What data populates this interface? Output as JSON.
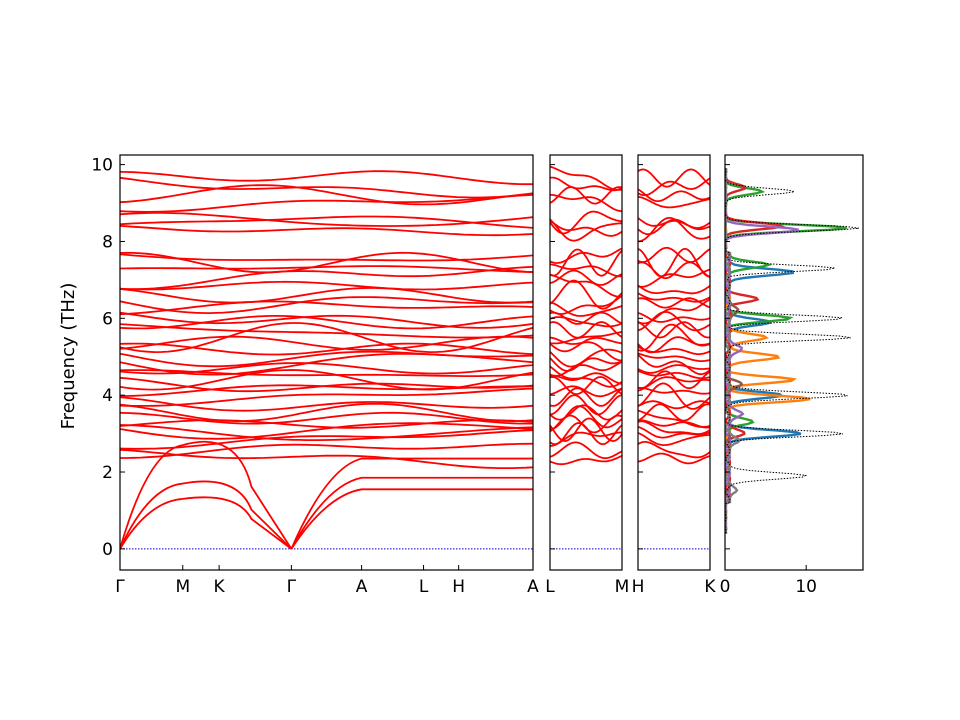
{
  "chart_data": [
    {
      "type": "line",
      "title": "",
      "ylabel": "Frequency (THz)",
      "ylim": [
        -0.55,
        10.25
      ],
      "yticks": [
        0,
        2,
        4,
        6,
        8,
        10
      ],
      "grid": false,
      "band_color": "#ff0000",
      "zero_line_color": "#0000cc",
      "segments": [
        {
          "name": "Γ-M-K-Γ-A-L-H-A",
          "xlim": [
            0,
            1
          ],
          "ticks": [
            {
              "label": "Γ",
              "pos": 0.0
            },
            {
              "label": "M",
              "pos": 0.152
            },
            {
              "label": "K",
              "pos": 0.24
            },
            {
              "label": "Γ",
              "pos": 0.415
            },
            {
              "label": "A",
              "pos": 0.585
            },
            {
              "label": "L",
              "pos": 0.735
            },
            {
              "label": "H",
              "pos": 0.82
            },
            {
              "label": "A",
              "pos": 1.0
            }
          ]
        },
        {
          "name": "L-M",
          "xlim": [
            0,
            1
          ],
          "ticks": [
            {
              "label": "L",
              "pos": 0.0
            },
            {
              "label": "M",
              "pos": 1.0
            }
          ]
        },
        {
          "name": "H-K",
          "xlim": [
            0,
            1
          ],
          "ticks": [
            {
              "label": "H",
              "pos": 0.0
            },
            {
              "label": "K",
              "pos": 1.0
            }
          ]
        }
      ],
      "band_levels_thz": [
        2.35,
        2.55,
        2.85,
        3.0,
        3.1,
        3.25,
        3.4,
        3.55,
        3.75,
        3.95,
        4.1,
        4.25,
        4.4,
        4.55,
        4.7,
        4.85,
        5.0,
        5.2,
        5.35,
        5.5,
        5.7,
        5.9,
        6.0,
        6.2,
        6.4,
        6.6,
        6.85,
        7.05,
        7.25,
        7.45,
        7.65,
        8.3,
        8.4,
        8.55,
        9.0,
        9.2,
        9.45,
        9.65
      ],
      "acoustic_branches": {
        "gamma_to_m_end_thz": [
          1.3,
          1.7,
          2.7
        ],
        "gamma_to_a_end_thz": [
          1.55,
          1.85,
          2.35
        ]
      }
    },
    {
      "type": "line",
      "title": "",
      "xlabel": "",
      "xlim": [
        0,
        17
      ],
      "xticks": [
        0,
        10
      ],
      "ylim": [
        -0.55,
        10.25
      ],
      "series": [
        {
          "color": "#1f77b4",
          "style": "solid",
          "peaks": [
            {
              "f": 3.0,
              "v": 9.0
            },
            {
              "f": 4.0,
              "v": 6.5
            },
            {
              "f": 5.9,
              "v": 5.5
            },
            {
              "f": 7.2,
              "v": 8.5
            }
          ]
        },
        {
          "color": "#ff7f0e",
          "style": "solid",
          "peaks": [
            {
              "f": 3.9,
              "v": 10.0
            },
            {
              "f": 4.4,
              "v": 8.0
            },
            {
              "f": 5.0,
              "v": 6.5
            },
            {
              "f": 5.5,
              "v": 5.0
            }
          ]
        },
        {
          "color": "#2ca02c",
          "style": "solid",
          "peaks": [
            {
              "f": 3.3,
              "v": 3.0
            },
            {
              "f": 6.0,
              "v": 7.5
            },
            {
              "f": 7.4,
              "v": 5.0
            },
            {
              "f": 8.35,
              "v": 15.0
            },
            {
              "f": 9.3,
              "v": 4.5
            }
          ]
        },
        {
          "color": "#d62728",
          "style": "solid",
          "peaks": [
            {
              "f": 3.0,
              "v": 2.0
            },
            {
              "f": 6.5,
              "v": 3.5
            },
            {
              "f": 8.4,
              "v": 7.0
            },
            {
              "f": 9.4,
              "v": 2.5
            }
          ]
        },
        {
          "color": "#9467bd",
          "style": "solid",
          "peaks": [
            {
              "f": 3.5,
              "v": 2.0
            },
            {
              "f": 5.2,
              "v": 2.0
            },
            {
              "f": 8.3,
              "v": 9.0
            }
          ]
        },
        {
          "color": "#8c564b",
          "style": "solid",
          "peaks": [
            {
              "f": 4.3,
              "v": 1.5
            },
            {
              "f": 6.2,
              "v": 1.5
            }
          ]
        },
        {
          "color": "#7f7f7f",
          "style": "solid",
          "peaks": [
            {
              "f": 1.5,
              "v": 1.2
            },
            {
              "f": 2.8,
              "v": 1.5
            }
          ]
        },
        {
          "color": "#000000",
          "style": "dotted",
          "peaks": [
            {
              "f": 1.9,
              "v": 10.0
            },
            {
              "f": 3.0,
              "v": 14.0
            },
            {
              "f": 4.0,
              "v": 15.0
            },
            {
              "f": 5.5,
              "v": 15.0
            },
            {
              "f": 6.0,
              "v": 14.0
            },
            {
              "f": 7.3,
              "v": 13.0
            },
            {
              "f": 8.35,
              "v": 16.5
            },
            {
              "f": 9.3,
              "v": 8.5
            }
          ]
        }
      ]
    }
  ]
}
